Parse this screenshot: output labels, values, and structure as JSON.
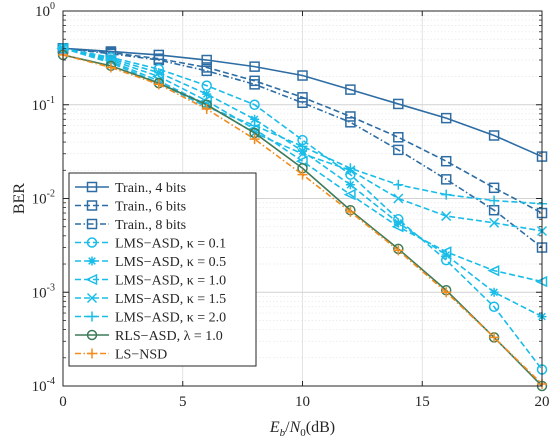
{
  "chart_data": {
    "type": "line",
    "xlabel": "E_b/N_0(dB)",
    "xlabel_parts": {
      "e": "E",
      "b": "b",
      "slash": "/",
      "n": "N",
      "zero": "0",
      "unit": "(dB)"
    },
    "ylabel": "BER",
    "xlim": [
      0,
      20
    ],
    "ylim": [
      0.0001,
      1
    ],
    "yscale": "log",
    "grid": true,
    "legend_placement": "bottom-left",
    "x_ticks": [
      0,
      5,
      10,
      15,
      20
    ],
    "x_tick_labels": [
      "0",
      "5",
      "10",
      "15",
      "20"
    ],
    "y_ticks": [
      0.0001,
      0.001,
      0.01,
      0.1,
      1
    ],
    "y_tick_labels": [
      {
        "base": "10",
        "exp": "-4"
      },
      {
        "base": "10",
        "exp": "-3"
      },
      {
        "base": "10",
        "exp": "-2"
      },
      {
        "base": "10",
        "exp": "-1"
      },
      {
        "base": "10",
        "exp": "0"
      }
    ],
    "x": [
      0,
      2,
      4,
      6,
      8,
      10,
      12,
      14,
      16,
      18,
      20
    ],
    "series": [
      {
        "name": "Train., 4 bits",
        "color": "#2e6da4",
        "dash": "solid",
        "marker": "square",
        "values": [
          0.4,
          0.37,
          0.34,
          0.3,
          0.255,
          0.205,
          0.145,
          0.102,
          0.072,
          0.047,
          0.028
        ]
      },
      {
        "name": "Train., 6 bits",
        "color": "#2e6da4",
        "dash": "dashed",
        "marker": "square",
        "values": [
          0.4,
          0.36,
          0.31,
          0.25,
          0.18,
          0.12,
          0.075,
          0.045,
          0.025,
          0.013,
          0.007
        ]
      },
      {
        "name": "Train., 8 bits",
        "color": "#2e6da4",
        "dash": "dashdot",
        "marker": "square",
        "values": [
          0.4,
          0.35,
          0.3,
          0.23,
          0.165,
          0.105,
          0.065,
          0.033,
          0.016,
          0.0075,
          0.003
        ]
      },
      {
        "name": "LMS−ASD, κ = 0.1",
        "color": "#19bde8",
        "dash": "dashed",
        "marker": "circle",
        "values": [
          0.4,
          0.32,
          0.24,
          0.16,
          0.1,
          0.042,
          0.018,
          0.006,
          0.0022,
          0.0007,
          0.00015
        ]
      },
      {
        "name": "LMS−ASD, κ = 0.5",
        "color": "#19bde8",
        "dash": "dashed",
        "marker": "asterisk",
        "values": [
          0.4,
          0.31,
          0.22,
          0.13,
          0.07,
          0.032,
          0.014,
          0.0055,
          0.0025,
          0.001,
          0.00055
        ]
      },
      {
        "name": "LMS−ASD, κ = 1.0",
        "color": "#19bde8",
        "dash": "dashed",
        "marker": "triangle-left",
        "values": [
          0.4,
          0.3,
          0.2,
          0.11,
          0.055,
          0.025,
          0.011,
          0.005,
          0.0027,
          0.0017,
          0.0013
        ]
      },
      {
        "name": "LMS−ASD, κ = 1.5",
        "color": "#19bde8",
        "dash": "dashed",
        "marker": "x",
        "values": [
          0.4,
          0.29,
          0.18,
          0.1,
          0.05,
          0.03,
          0.02,
          0.01,
          0.0065,
          0.0055,
          0.0045
        ]
      },
      {
        "name": "LMS−ASD, κ = 2.0",
        "color": "#19bde8",
        "dash": "dashed",
        "marker": "plus",
        "values": [
          0.4,
          0.28,
          0.17,
          0.095,
          0.06,
          0.036,
          0.021,
          0.014,
          0.011,
          0.0095,
          0.0088
        ]
      },
      {
        "name": "RLS−ASD, λ = 1.0",
        "color": "#3d7b5a",
        "dash": "solid",
        "marker": "circle",
        "values": [
          0.34,
          0.26,
          0.17,
          0.1,
          0.05,
          0.021,
          0.0075,
          0.0029,
          0.00105,
          0.00033,
          0.0001
        ]
      },
      {
        "name": "LS−NSD",
        "color": "#f28c1e",
        "dash": "dashdot",
        "marker": "plus",
        "values": [
          0.34,
          0.25,
          0.165,
          0.09,
          0.043,
          0.018,
          0.0072,
          0.0028,
          0.001,
          0.00033,
          0.000105
        ]
      }
    ]
  }
}
